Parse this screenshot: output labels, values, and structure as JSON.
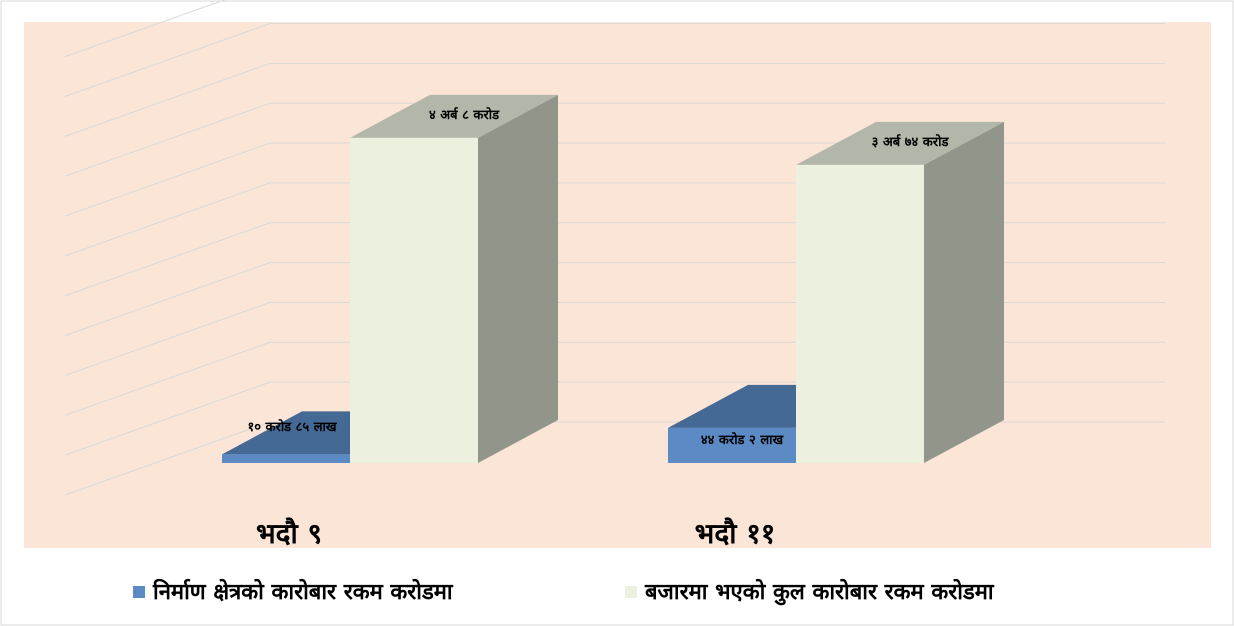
{
  "chart_data": {
    "type": "bar3d",
    "categories": [
      "भदौ ९",
      "भदौ ११"
    ],
    "series": [
      {
        "name": "निर्माण क्षेत्रको कारोबार रकम करोडमा",
        "color": "#5b8ac4",
        "values": [
          10.85,
          44.02
        ],
        "value_labels": [
          "१० करोड ८५ लाख",
          "४४ करोड २ लाख"
        ]
      },
      {
        "name": "बजारमा भएको कुल कारोबार रकम करोडमा",
        "color": "#ebf1de",
        "values": [
          408,
          374
        ],
        "value_labels": [
          "४ अर्ब ८ करोड",
          "३ अर्ब ७४ करोड"
        ]
      }
    ],
    "ylim": [
      0,
      550
    ],
    "yticks": [
      0,
      50,
      100,
      150,
      200,
      250,
      300,
      350,
      400,
      450,
      500,
      550
    ],
    "grid": true,
    "legend": "bottom"
  }
}
